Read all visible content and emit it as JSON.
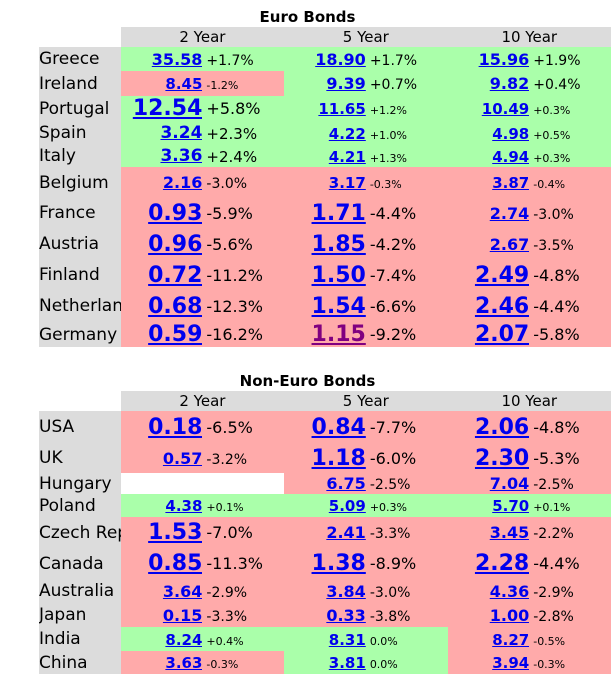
{
  "euro": {
    "title": "Euro Bonds",
    "headers": [
      "2 Year",
      "5 Year",
      "10 Year"
    ],
    "rows": [
      {
        "country": "Greece",
        "cells": [
          [
            "35.58",
            "+1.7%",
            "g",
            "s2"
          ],
          [
            "18.90",
            "+1.7%",
            "g",
            "s2"
          ],
          [
            "15.96",
            "+1.9%",
            "g",
            "s2"
          ]
        ]
      },
      {
        "country": "Ireland",
        "cells": [
          [
            "8.45",
            "-1.2%",
            "r",
            "s1"
          ],
          [
            "9.39",
            "+0.7%",
            "g",
            "s2"
          ],
          [
            "9.82",
            "+0.4%",
            "g",
            "s2"
          ]
        ]
      },
      {
        "country": "Portugal",
        "cells": [
          [
            "12.54",
            "+5.8%",
            "g",
            "s3"
          ],
          [
            "11.65",
            "+1.2%",
            "g",
            "s1"
          ],
          [
            "10.49",
            "+0.3%",
            "g",
            "s1"
          ]
        ]
      },
      {
        "country": "Spain",
        "cells": [
          [
            "3.24",
            "+2.3%",
            "g",
            "s4"
          ],
          [
            "4.22",
            "+1.0%",
            "g",
            "s1"
          ],
          [
            "4.98",
            "+0.5%",
            "g",
            "s1"
          ]
        ]
      },
      {
        "country": "Italy",
        "cells": [
          [
            "3.36",
            "+2.4%",
            "g",
            "s4"
          ],
          [
            "4.21",
            "+1.3%",
            "g",
            "s1"
          ],
          [
            "4.94",
            "+0.3%",
            "g",
            "s1"
          ]
        ]
      },
      {
        "country": "Belgium",
        "cells": [
          [
            "2.16",
            "-3.0%",
            "r",
            "s2"
          ],
          [
            "3.17",
            "-0.3%",
            "r",
            "s1"
          ],
          [
            "3.87",
            "-0.4%",
            "r",
            "s1"
          ]
        ]
      },
      {
        "country": "France",
        "cells": [
          [
            "0.93",
            "-5.9%",
            "r",
            "s3"
          ],
          [
            "1.71",
            "-4.4%",
            "r",
            "s3"
          ],
          [
            "2.74",
            "-3.0%",
            "r",
            "s2"
          ]
        ]
      },
      {
        "country": "Austria",
        "cells": [
          [
            "0.96",
            "-5.6%",
            "r",
            "s3"
          ],
          [
            "1.85",
            "-4.2%",
            "r",
            "s3"
          ],
          [
            "2.67",
            "-3.5%",
            "r",
            "s2"
          ]
        ]
      },
      {
        "country": "Finland",
        "cells": [
          [
            "0.72",
            "-11.2%",
            "r",
            "s3"
          ],
          [
            "1.50",
            "-7.4%",
            "r",
            "s3"
          ],
          [
            "2.49",
            "-4.8%",
            "r",
            "s3"
          ]
        ]
      },
      {
        "country": "Netherlands",
        "cells": [
          [
            "0.68",
            "-12.3%",
            "r",
            "s3"
          ],
          [
            "1.54",
            "-6.6%",
            "r",
            "s3"
          ],
          [
            "2.46",
            "-4.4%",
            "r",
            "s3"
          ]
        ]
      },
      {
        "country": "Germany",
        "cells": [
          [
            "0.59",
            "-16.2%",
            "r",
            "s3"
          ],
          [
            "1.15",
            "-9.2%",
            "r",
            "s3"
          ],
          [
            "2.07",
            "-5.8%",
            "r",
            "s3"
          ]
        ]
      }
    ]
  },
  "noneuro": {
    "title": "Non-Euro Bonds",
    "headers": [
      "2 Year",
      "5 Year",
      "10 Year"
    ],
    "rows": [
      {
        "country": "USA",
        "cells": [
          [
            "0.18",
            "-6.5%",
            "r",
            "s3"
          ],
          [
            "0.84",
            "-7.7%",
            "r",
            "s3"
          ],
          [
            "2.06",
            "-4.8%",
            "r",
            "s3"
          ]
        ]
      },
      {
        "country": "UK",
        "cells": [
          [
            "0.57",
            "-3.2%",
            "r",
            "s2"
          ],
          [
            "1.18",
            "-6.0%",
            "r",
            "s3"
          ],
          [
            "2.30",
            "-5.3%",
            "r",
            "s3"
          ]
        ]
      },
      {
        "country": "Hungary",
        "cells": [
          [
            "",
            "",
            "e",
            "s2"
          ],
          [
            "6.75",
            "-2.5%",
            "r",
            "s2"
          ],
          [
            "7.04",
            "-2.5%",
            "r",
            "s2"
          ]
        ]
      },
      {
        "country": "Poland",
        "cells": [
          [
            "4.38",
            "+0.1%",
            "g",
            "s1"
          ],
          [
            "5.09",
            "+0.3%",
            "g",
            "s1"
          ],
          [
            "5.70",
            "+0.1%",
            "g",
            "s1"
          ]
        ]
      },
      {
        "country": "Czech Rep.",
        "cells": [
          [
            "1.53",
            "-7.0%",
            "r",
            "s3"
          ],
          [
            "2.41",
            "-3.3%",
            "r",
            "s2"
          ],
          [
            "3.45",
            "-2.2%",
            "r",
            "s2"
          ]
        ]
      },
      {
        "country": "Canada",
        "cells": [
          [
            "0.85",
            "-11.3%",
            "r",
            "s3"
          ],
          [
            "1.38",
            "-8.9%",
            "r",
            "s3"
          ],
          [
            "2.28",
            "-4.4%",
            "r",
            "s3"
          ]
        ]
      },
      {
        "country": "Australia",
        "cells": [
          [
            "3.64",
            "-2.9%",
            "r",
            "s2"
          ],
          [
            "3.84",
            "-3.0%",
            "r",
            "s2"
          ],
          [
            "4.36",
            "-2.9%",
            "r",
            "s2"
          ]
        ]
      },
      {
        "country": "Japan",
        "cells": [
          [
            "0.15",
            "-3.3%",
            "r",
            "s2"
          ],
          [
            "0.33",
            "-3.8%",
            "r",
            "s2"
          ],
          [
            "1.00",
            "-2.8%",
            "r",
            "s2"
          ]
        ]
      },
      {
        "country": "India",
        "cells": [
          [
            "8.24",
            "+0.4%",
            "g",
            "s1"
          ],
          [
            "8.31",
            "0.0%",
            "g",
            "s1"
          ],
          [
            "8.27",
            "-0.5%",
            "r",
            "s1"
          ]
        ]
      },
      {
        "country": "China",
        "cells": [
          [
            "3.63",
            "-0.3%",
            "r",
            "s1"
          ],
          [
            "3.81",
            "0.0%",
            "g",
            "s1"
          ],
          [
            "3.94",
            "-0.3%",
            "r",
            "s1"
          ]
        ]
      }
    ]
  },
  "colors": {
    "up": "#aaffaa",
    "down": "#ffaaaa",
    "label_bg": "#dcdcdc",
    "link": "#0000ee",
    "visited": "#800080"
  },
  "visited": [
    "euro.10.1"
  ]
}
